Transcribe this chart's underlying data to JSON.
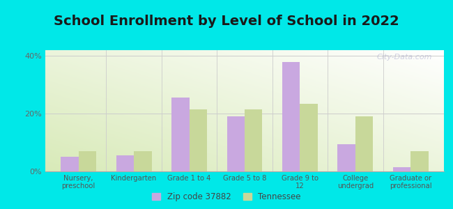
{
  "title": "School Enrollment by Level of School in 2022",
  "categories": [
    "Nursery,\npreschool",
    "Kindergarten",
    "Grade 1 to 4",
    "Grade 5 to 8",
    "Grade 9 to\n12",
    "College\nundergrad",
    "Graduate or\nprofessional"
  ],
  "zip_values": [
    5.0,
    5.5,
    25.5,
    19.0,
    38.0,
    9.5,
    1.5
  ],
  "tn_values": [
    7.0,
    7.0,
    21.5,
    21.5,
    23.5,
    19.0,
    7.0
  ],
  "zip_color": "#c9a8e0",
  "tn_color": "#c8d89a",
  "ylim": [
    0,
    42
  ],
  "yticks": [
    0,
    20,
    40
  ],
  "ytick_labels": [
    "0%",
    "20%",
    "40%"
  ],
  "background_color": "#00e8e8",
  "title_fontsize": 14,
  "legend_zip_label": "Zip code 37882",
  "legend_tn_label": "Tennessee",
  "watermark": "City-Data.com",
  "bar_width": 0.32
}
